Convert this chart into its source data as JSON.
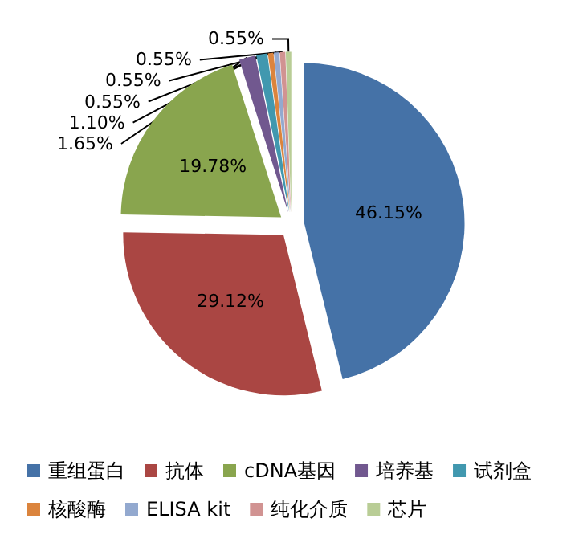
{
  "chart_data": {
    "type": "pie",
    "categories": [
      "重组蛋白",
      "抗体",
      "cDNA基因",
      "培养基",
      "试剂盒",
      "核酸酶",
      "ELISA kit",
      "纯化介质",
      "芯片"
    ],
    "values": [
      46.15,
      29.12,
      19.78,
      1.65,
      1.1,
      0.55,
      0.55,
      0.55,
      0.55
    ],
    "colors": [
      "#4572a7",
      "#aa4643",
      "#89a54e",
      "#71588f",
      "#4198af",
      "#db843d",
      "#93a9cf",
      "#d19392",
      "#b9cd96"
    ],
    "value_labels": [
      "46.15%",
      "29.12%",
      "19.78%",
      "1.65%",
      "1.10%",
      "0.55%",
      "0.55%",
      "0.55%",
      "0.55%"
    ],
    "legend": "bottom"
  }
}
